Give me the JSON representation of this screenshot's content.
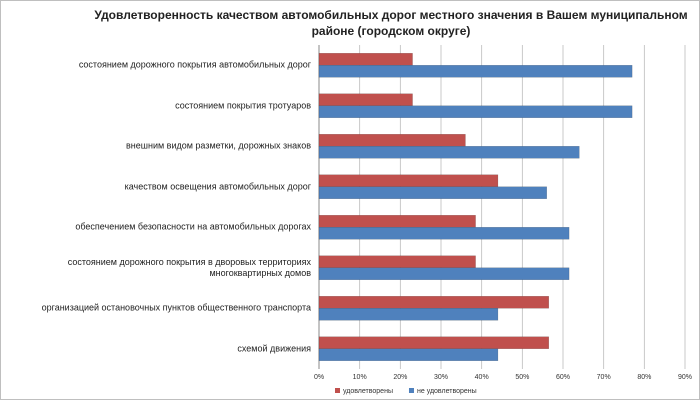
{
  "chart_data": {
    "type": "hbar",
    "title": "Удовлетворенность качеством автомобильных дорог местного значения в Вашем муниципальном районе (городском округе)",
    "categories": [
      "состоянием дорожного покрытия автомобильных дорог",
      "состоянием покрытия тротуаров",
      "внешним видом разметки, дорожных знаков",
      "качеством освещения автомобильных дорог",
      "обеспечением безопасности на автомобильных дорогах",
      "состоянием дорожного покрытия в дворовых территориях многоквартирных домов",
      "организацией остановочных пунктов общественного транспорта",
      "схемой движения"
    ],
    "series": [
      {
        "name": "удовлетворены",
        "color": "#c0504d",
        "values": [
          23,
          23,
          36,
          44,
          38.5,
          38.5,
          56.5,
          56.5
        ]
      },
      {
        "name": "не удовлетворены",
        "color": "#4f81bd",
        "values": [
          77,
          77,
          64,
          56,
          61.5,
          61.5,
          44,
          44
        ]
      }
    ],
    "xlim": [
      0,
      90
    ],
    "xticks": [
      {
        "value": 0,
        "label": "0%"
      },
      {
        "value": 10,
        "label": "10%"
      },
      {
        "value": 20,
        "label": "20%"
      },
      {
        "value": 30,
        "label": "30%"
      },
      {
        "value": 40,
        "label": "40%"
      },
      {
        "value": 50,
        "label": "50%"
      },
      {
        "value": 60,
        "label": "60%"
      },
      {
        "value": 70,
        "label": "70%"
      },
      {
        "value": 80,
        "label": "80%"
      },
      {
        "value": 90,
        "label": "90%"
      }
    ],
    "grid": true,
    "legend": "bottom"
  }
}
